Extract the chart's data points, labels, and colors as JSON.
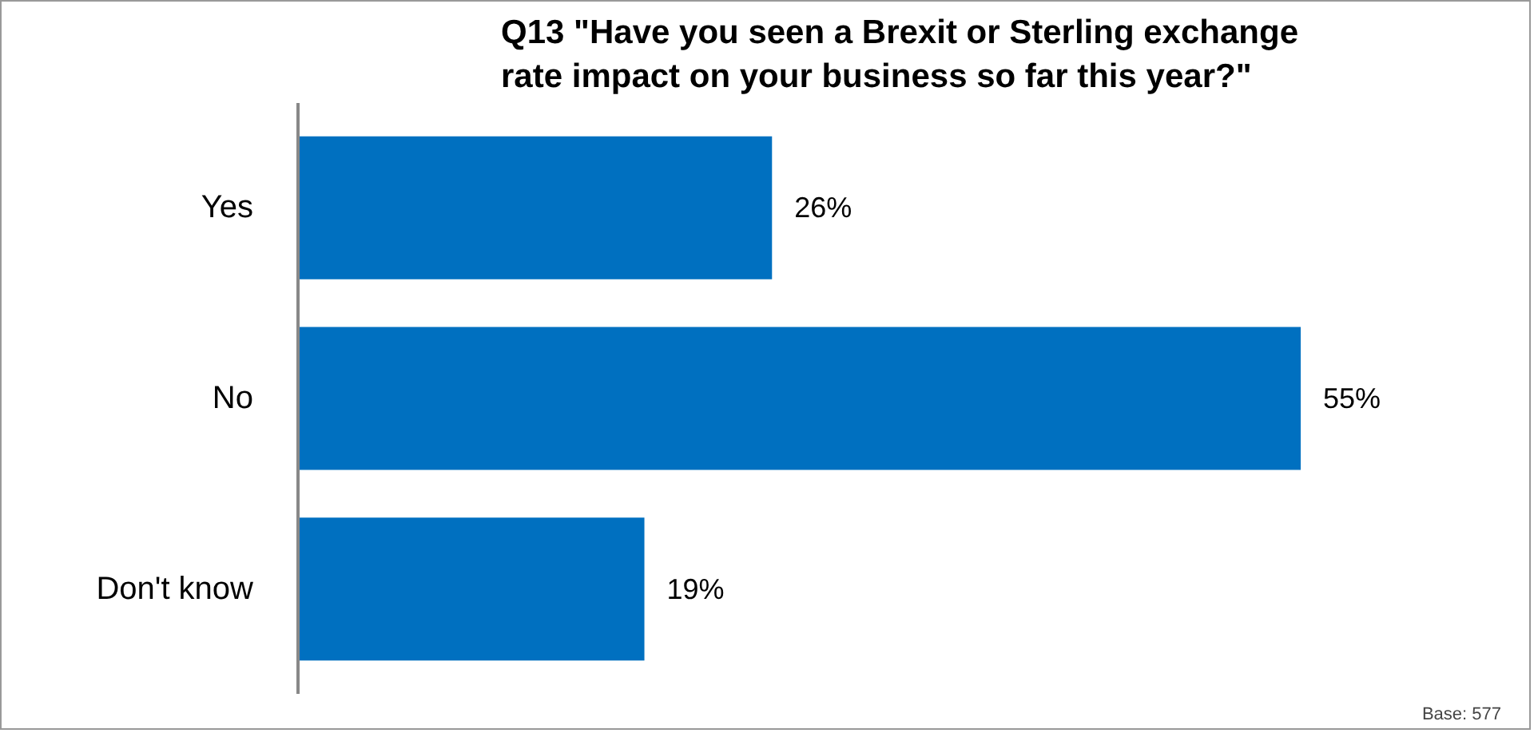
{
  "chart_data": {
    "type": "bar",
    "orientation": "horizontal",
    "title": "Q13 \"Have you seen a Brexit or Sterling exchange\nrate impact on your business so far this year?\"",
    "categories": [
      "Yes",
      "No",
      "Don't know"
    ],
    "values": [
      26,
      55,
      19
    ],
    "value_labels": [
      "26%",
      "55%",
      "19%"
    ],
    "color": "#0070c0",
    "annotations": [
      "Base: 577"
    ],
    "grid": false
  }
}
